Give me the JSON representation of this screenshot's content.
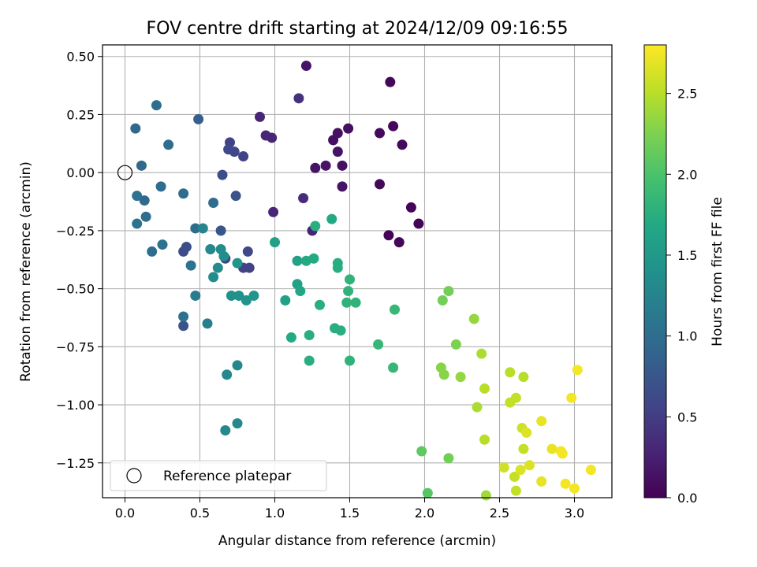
{
  "chart_data": {
    "type": "scatter",
    "title": "FOV centre drift starting at 2024/12/09 09:16:55",
    "xlabel": "Angular distance from reference (arcmin)",
    "ylabel": "Rotation from reference (arcmin)",
    "xlim": [
      -0.15,
      3.25
    ],
    "ylim": [
      -1.4,
      0.55
    ],
    "xticks": [
      "0.0",
      "0.5",
      "1.0",
      "1.5",
      "2.0",
      "2.5",
      "3.0"
    ],
    "yticks": [
      "0.50",
      "0.25",
      "0.00",
      "−0.25",
      "−0.50",
      "−0.75",
      "−1.00",
      "−1.25"
    ],
    "grid": true,
    "colorbar": {
      "label": "Hours from first FF file",
      "range": [
        0,
        2.8
      ],
      "ticks": [
        "0.0",
        "0.5",
        "1.0",
        "1.5",
        "2.0",
        "2.5"
      ],
      "colormap": "viridis"
    },
    "legend": {
      "location": "lower left",
      "entries": [
        "Reference platepar"
      ]
    },
    "reference_point": {
      "x": 0.0,
      "y": 0.0,
      "label": "Reference platepar"
    },
    "points": [
      [
        1.21,
        0.46,
        0.15
      ],
      [
        1.77,
        0.39,
        0.05
      ],
      [
        1.16,
        0.32,
        0.4
      ],
      [
        0.9,
        0.24,
        0.3
      ],
      [
        1.79,
        0.2,
        0.05
      ],
      [
        1.49,
        0.19,
        0.12
      ],
      [
        1.7,
        0.17,
        0.07
      ],
      [
        1.42,
        0.17,
        0.13
      ],
      [
        0.94,
        0.16,
        0.3
      ],
      [
        0.98,
        0.15,
        0.3
      ],
      [
        1.39,
        0.14,
        0.12
      ],
      [
        1.85,
        0.12,
        0.06
      ],
      [
        1.42,
        0.09,
        0.15
      ],
      [
        1.34,
        0.03,
        0.15
      ],
      [
        1.45,
        0.03,
        0.12
      ],
      [
        1.27,
        0.02,
        0.15
      ],
      [
        1.7,
        -0.05,
        0.05
      ],
      [
        1.45,
        -0.06,
        0.15
      ],
      [
        1.19,
        -0.11,
        0.35
      ],
      [
        1.91,
        -0.15,
        0.03
      ],
      [
        0.99,
        -0.17,
        0.3
      ],
      [
        1.96,
        -0.22,
        0.03
      ],
      [
        1.25,
        -0.25,
        0.28
      ],
      [
        1.76,
        -0.27,
        0.03
      ],
      [
        1.83,
        -0.3,
        0.05
      ],
      [
        0.7,
        0.13,
        0.55
      ],
      [
        0.69,
        0.1,
        0.6
      ],
      [
        0.73,
        0.09,
        0.6
      ],
      [
        0.79,
        0.07,
        0.55
      ],
      [
        0.65,
        -0.01,
        0.65
      ],
      [
        0.74,
        -0.1,
        0.7
      ],
      [
        0.82,
        -0.34,
        0.6
      ],
      [
        0.79,
        -0.41,
        0.55
      ],
      [
        0.83,
        -0.41,
        0.55
      ],
      [
        0.67,
        -0.37,
        0.55
      ],
      [
        0.64,
        -0.25,
        0.75
      ],
      [
        0.41,
        -0.32,
        0.65
      ],
      [
        0.39,
        -0.34,
        0.65
      ],
      [
        0.39,
        -0.66,
        0.7
      ],
      [
        0.49,
        0.23,
        0.85
      ],
      [
        0.21,
        0.29,
        1.0
      ],
      [
        0.07,
        0.19,
        0.95
      ],
      [
        0.29,
        0.12,
        1.0
      ],
      [
        0.11,
        0.03,
        0.95
      ],
      [
        0.24,
        -0.06,
        1.0
      ],
      [
        0.08,
        -0.1,
        1.05
      ],
      [
        0.39,
        -0.09,
        1.0
      ],
      [
        0.13,
        -0.12,
        0.95
      ],
      [
        0.59,
        -0.13,
        1.0
      ],
      [
        0.08,
        -0.22,
        1.05
      ],
      [
        0.14,
        -0.19,
        1.0
      ],
      [
        0.47,
        -0.24,
        1.0
      ],
      [
        0.18,
        -0.34,
        1.0
      ],
      [
        0.25,
        -0.31,
        1.05
      ],
      [
        0.44,
        -0.4,
        1.05
      ],
      [
        0.39,
        -0.62,
        1.05
      ],
      [
        0.47,
        -0.53,
        1.15
      ],
      [
        0.55,
        -0.65,
        1.2
      ],
      [
        0.52,
        -0.24,
        1.25
      ],
      [
        0.57,
        -0.33,
        1.3
      ],
      [
        0.64,
        -0.33,
        1.35
      ],
      [
        0.66,
        -0.36,
        1.35
      ],
      [
        0.62,
        -0.41,
        1.35
      ],
      [
        0.59,
        -0.45,
        1.35
      ],
      [
        0.71,
        -0.53,
        1.4
      ],
      [
        0.76,
        -0.53,
        1.4
      ],
      [
        0.81,
        -0.55,
        1.45
      ],
      [
        0.75,
        -0.39,
        1.45
      ],
      [
        0.86,
        -0.53,
        1.45
      ],
      [
        0.68,
        -0.87,
        1.3
      ],
      [
        0.75,
        -0.83,
        1.3
      ],
      [
        0.67,
        -1.11,
        1.3
      ],
      [
        0.75,
        -1.08,
        1.3
      ],
      [
        1.0,
        -0.3,
        1.6
      ],
      [
        1.07,
        -0.55,
        1.6
      ],
      [
        1.15,
        -0.38,
        1.6
      ],
      [
        1.15,
        -0.48,
        1.6
      ],
      [
        1.17,
        -0.51,
        1.65
      ],
      [
        1.21,
        -0.38,
        1.7
      ],
      [
        1.26,
        -0.37,
        1.7
      ],
      [
        1.27,
        -0.23,
        1.75
      ],
      [
        1.38,
        -0.2,
        1.7
      ],
      [
        1.42,
        -0.39,
        1.75
      ],
      [
        1.42,
        -0.41,
        1.75
      ],
      [
        1.3,
        -0.57,
        1.75
      ],
      [
        1.11,
        -0.71,
        1.7
      ],
      [
        1.23,
        -0.7,
        1.75
      ],
      [
        1.23,
        -0.81,
        1.75
      ],
      [
        1.4,
        -0.67,
        1.75
      ],
      [
        1.44,
        -0.68,
        1.75
      ],
      [
        1.5,
        -0.46,
        1.8
      ],
      [
        1.49,
        -0.51,
        1.8
      ],
      [
        1.48,
        -0.56,
        1.8
      ],
      [
        1.54,
        -0.56,
        1.8
      ],
      [
        1.5,
        -0.81,
        1.8
      ],
      [
        1.8,
        -0.59,
        1.85
      ],
      [
        1.69,
        -0.74,
        1.85
      ],
      [
        1.79,
        -0.84,
        1.85
      ],
      [
        2.16,
        -0.51,
        2.2
      ],
      [
        2.12,
        -0.55,
        2.2
      ],
      [
        2.21,
        -0.74,
        2.25
      ],
      [
        2.11,
        -0.84,
        2.3
      ],
      [
        2.13,
        -0.87,
        2.3
      ],
      [
        2.24,
        -0.88,
        2.35
      ],
      [
        2.33,
        -0.63,
        2.35
      ],
      [
        2.38,
        -0.78,
        2.45
      ],
      [
        2.4,
        -0.93,
        2.5
      ],
      [
        2.35,
        -1.01,
        2.45
      ],
      [
        1.98,
        -1.2,
        2.1
      ],
      [
        2.02,
        -1.38,
        2.05
      ],
      [
        2.16,
        -1.23,
        2.2
      ],
      [
        2.4,
        -1.15,
        2.5
      ],
      [
        2.41,
        -1.39,
        2.4
      ],
      [
        2.57,
        -0.86,
        2.5
      ],
      [
        2.66,
        -0.88,
        2.5
      ],
      [
        2.57,
        -0.99,
        2.55
      ],
      [
        2.61,
        -0.97,
        2.55
      ],
      [
        2.65,
        -1.1,
        2.6
      ],
      [
        2.68,
        -1.12,
        2.65
      ],
      [
        2.66,
        -1.19,
        2.55
      ],
      [
        2.53,
        -1.27,
        2.6
      ],
      [
        2.6,
        -1.31,
        2.55
      ],
      [
        2.64,
        -1.28,
        2.65
      ],
      [
        2.7,
        -1.26,
        2.65
      ],
      [
        2.61,
        -1.37,
        2.55
      ],
      [
        2.78,
        -1.07,
        2.7
      ],
      [
        2.78,
        -1.33,
        2.7
      ],
      [
        2.85,
        -1.19,
        2.7
      ],
      [
        2.91,
        -1.2,
        2.75
      ],
      [
        2.92,
        -1.21,
        2.75
      ],
      [
        2.98,
        -0.97,
        2.75
      ],
      [
        3.02,
        -0.85,
        2.75
      ],
      [
        2.94,
        -1.34,
        2.75
      ],
      [
        3.0,
        -1.36,
        2.75
      ],
      [
        3.11,
        -1.28,
        2.75
      ]
    ]
  }
}
